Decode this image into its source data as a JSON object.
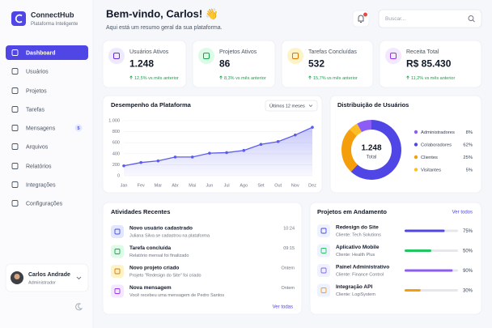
{
  "sidebar": {
    "brand": "ConnectHub",
    "tagline": "Plataforma Inteligente",
    "nav": [
      {
        "label": "Dashboard"
      },
      {
        "label": "Usuários"
      },
      {
        "label": "Projetos"
      },
      {
        "label": "Tarefas"
      },
      {
        "label": "Mensagens",
        "badge": "5"
      },
      {
        "label": "Arquivos"
      },
      {
        "label": "Relatórios"
      },
      {
        "label": "Integrações"
      },
      {
        "label": "Configurações"
      }
    ],
    "user": {
      "name": "Carlos Andrade",
      "role": "Administrador"
    }
  },
  "header": {
    "title": "Bem-vindo, Carlos! 👋",
    "subtitle": "Aqui está um resumo geral da sua plataforma.",
    "search_placeholder": "Buscar..."
  },
  "stats": [
    {
      "label": "Usuários Ativos",
      "value": "1.248",
      "change": "12,5% vs mês anterior"
    },
    {
      "label": "Projetos Ativos",
      "value": "86",
      "change": "8,3% vs mês anterior"
    },
    {
      "label": "Tarefas Concluídas",
      "value": "532",
      "change": "15,7% vs mês anterior"
    },
    {
      "label": "Receita Total",
      "value": "R$ 85.430",
      "change": "11,2% vs mês anterior"
    }
  ],
  "performance_chart": {
    "type": "line",
    "title": "Desempenho da Plataforma",
    "period": "Últimos 12 meses",
    "color": "#5b5bf0",
    "categories": [
      "Jan",
      "Fev",
      "Mar",
      "Abr",
      "Mai",
      "Jun",
      "Jul",
      "Ago",
      "Set",
      "Out",
      "Nov",
      "Dez"
    ],
    "values": [
      180,
      240,
      270,
      340,
      340,
      410,
      420,
      460,
      570,
      620,
      740,
      880
    ],
    "ylim": [
      0,
      1000
    ],
    "yticks": [
      0,
      200,
      400,
      600,
      800,
      {
        "value": 1000,
        "label": "1.000"
      }
    ],
    "grid": true
  },
  "distribution_chart": {
    "type": "pie",
    "title": "Distribuição de Usuários",
    "total": "1.248",
    "total_caption": "Total",
    "categories": [
      "Administradores",
      "Colaboradores",
      "Clientes",
      "Visitantes"
    ],
    "values": [
      8,
      62,
      25,
      5
    ],
    "value_labels": [
      "8%",
      "62%",
      "25%",
      "5%"
    ],
    "colors": [
      "#8b5cf6",
      "#4f46e5",
      "#f59e0b",
      "#fbbf24"
    ]
  },
  "activities": {
    "title": "Atividades Recentes",
    "link": "Ver todas",
    "items": [
      {
        "title": "Novo usuário cadastrado",
        "description": "Juliana Silva se cadastrou na plataforma",
        "time": "10:24"
      },
      {
        "title": "Tarefa concluída",
        "description": "Relatório mensal foi finalizado",
        "time": "09:15"
      },
      {
        "title": "Novo projeto criado",
        "description": "Projeto \"Redesign do Site\" foi criado",
        "time": "Ontem"
      },
      {
        "title": "Nova mensagem",
        "description": "Você recebeu uma mensagem de Pedro Santos",
        "time": "Ontem"
      }
    ]
  },
  "projects": {
    "title": "Projetos em Andamento",
    "link": "Ver todos",
    "items": [
      {
        "name": "Redesign do Site",
        "client": "Cliente: Tech Solutions",
        "progress": 75,
        "progress_label": "75%",
        "color": "#4f46e5"
      },
      {
        "name": "Aplicativo Mobile",
        "client": "Cliente: Health Plus",
        "progress": 50,
        "progress_label": "50%",
        "color": "#22c55e"
      },
      {
        "name": "Painel Administrativo",
        "client": "Cliente: Finance Control",
        "progress": 90,
        "progress_label": "90%",
        "color": "#8b5cf6"
      },
      {
        "name": "Integração API",
        "client": "Cliente: LogiSystem",
        "progress": 30,
        "progress_label": "30%",
        "color": "#f59e0b"
      }
    ]
  }
}
